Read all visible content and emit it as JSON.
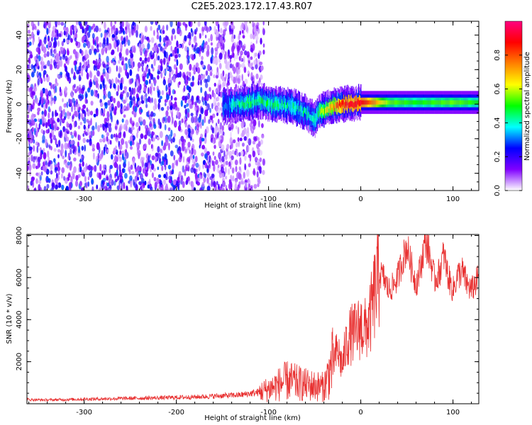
{
  "title": "C2E5.2023.172.17.43.R07",
  "chart_data": [
    {
      "type": "heatmap",
      "xlabel": "Height of straight line (km)",
      "ylabel": "Frequency (Hz)",
      "xlim": [
        -362,
        128
      ],
      "ylim": [
        -50,
        48
      ],
      "xticks": [
        -300,
        -200,
        -100,
        0,
        100
      ],
      "yticks": [
        -40,
        -20,
        0,
        20,
        40
      ],
      "xtick_labels": [
        "-300",
        "-200",
        "-100",
        "0",
        "100"
      ],
      "ytick_labels": [
        "-40",
        "-20",
        "0",
        "20",
        "40"
      ],
      "colorbar": {
        "label": "Normalized spectral amplitude",
        "range": [
          0,
          1
        ],
        "ticks": [
          0.0,
          0.2,
          0.4,
          0.6,
          0.8
        ],
        "tick_labels": [
          "0.0",
          "0.2",
          "0.4",
          "0.6",
          "0.8"
        ],
        "colors": [
          "#ffffff",
          "#8000ff",
          "#0000ff",
          "#00ffff",
          "#00ff00",
          "#ffff00",
          "#ff8000",
          "#ff0000",
          "#ff0080"
        ]
      },
      "noise_region": {
        "x": [
          -362,
          -105
        ],
        "y": [
          -50,
          48
        ],
        "amplitude": [
          0.05,
          0.3
        ]
      },
      "ridge": [
        {
          "x": -150,
          "y": -1,
          "amp": 0.3
        },
        {
          "x": -130,
          "y": 0,
          "amp": 0.45
        },
        {
          "x": -110,
          "y": 2,
          "amp": 0.45
        },
        {
          "x": -95,
          "y": 0,
          "amp": 0.45
        },
        {
          "x": -75,
          "y": -1,
          "amp": 0.4
        },
        {
          "x": -60,
          "y": -5,
          "amp": 0.4
        },
        {
          "x": -50,
          "y": -9,
          "amp": 0.35
        },
        {
          "x": -45,
          "y": -4,
          "amp": 0.5
        },
        {
          "x": -35,
          "y": -2,
          "amp": 0.65
        },
        {
          "x": -20,
          "y": 0,
          "amp": 0.85
        },
        {
          "x": 0,
          "y": 1,
          "amp": 0.9
        },
        {
          "x": 30,
          "y": 1,
          "amp": 0.55
        },
        {
          "x": 60,
          "y": 1,
          "amp": 0.5
        },
        {
          "x": 100,
          "y": 1,
          "amp": 0.55
        },
        {
          "x": 128,
          "y": 1,
          "amp": 0.5
        }
      ]
    },
    {
      "type": "line",
      "xlabel": "Height of straight line (km)",
      "ylabel": "SNR (10 * v/v)",
      "xlim": [
        -362,
        128
      ],
      "ylim": [
        0,
        8050
      ],
      "xticks": [
        -300,
        -200,
        -100,
        0,
        100
      ],
      "yticks": [
        2000,
        4000,
        6000,
        8000
      ],
      "xtick_labels": [
        "-300",
        "-200",
        "-100",
        "0",
        "100"
      ],
      "ytick_labels": [
        "2000",
        "4000",
        "6000",
        "8000"
      ],
      "series": [
        {
          "color": "#e83030",
          "x": [
            -362,
            -340,
            -300,
            -260,
            -220,
            -180,
            -150,
            -130,
            -110,
            -100,
            -90,
            -80,
            -70,
            -60,
            -50,
            -40,
            -30,
            -25,
            -20,
            -15,
            -10,
            -5,
            0,
            5,
            10,
            15,
            20,
            25,
            30,
            35,
            40,
            45,
            50,
            55,
            60,
            65,
            70,
            75,
            80,
            85,
            90,
            95,
            100,
            105,
            110,
            115,
            120,
            128
          ],
          "y": [
            200,
            180,
            220,
            250,
            280,
            320,
            380,
            420,
            550,
            700,
            900,
            1100,
            1000,
            900,
            850,
            800,
            2000,
            2500,
            1800,
            3000,
            3300,
            3400,
            3700,
            3500,
            4000,
            5200,
            6200,
            6000,
            5400,
            5600,
            6000,
            6800,
            7500,
            6500,
            5700,
            6500,
            7800,
            7000,
            5900,
            6200,
            7100,
            6000,
            5400,
            6100,
            6300,
            5700,
            5400,
            6000
          ]
        }
      ]
    }
  ]
}
